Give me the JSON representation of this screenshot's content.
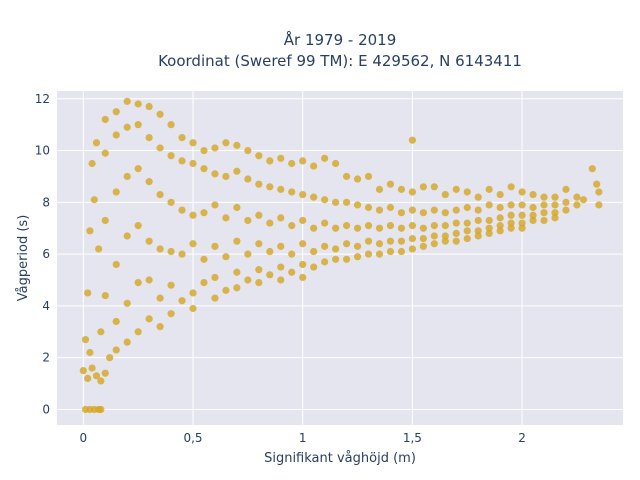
{
  "chart_data": {
    "type": "scatter",
    "title_line1": "År 1979 - 2019",
    "title_line2": "Koordinat (Sweref 99 TM): E 429562, N 6143411",
    "xlabel": "Signifikant våghöjd (m)",
    "ylabel": "Vågperiod (s)",
    "xlim": [
      -0.12,
      2.46
    ],
    "ylim": [
      -0.6,
      12.3
    ],
    "xticks": [
      0,
      0.5,
      1,
      1.5,
      2
    ],
    "xtick_labels": [
      "0",
      "0,5",
      "1",
      "1,5",
      "2"
    ],
    "yticks": [
      0,
      2,
      4,
      6,
      8,
      10,
      12
    ],
    "ytick_labels": [
      "0",
      "2",
      "4",
      "6",
      "8",
      "10",
      "12"
    ],
    "grid": true,
    "marker_color": "#D4A520",
    "plot_background": "#E5E5EF",
    "series": [
      {
        "points": [
          [
            0.01,
            0
          ],
          [
            0.03,
            0
          ],
          [
            0.05,
            0
          ],
          [
            0.07,
            0
          ],
          [
            0.08,
            0
          ],
          [
            0.0,
            1.5
          ],
          [
            0.02,
            1.2
          ],
          [
            0.04,
            1.6
          ],
          [
            0.06,
            1.3
          ],
          [
            0.08,
            1.1
          ],
          [
            0.1,
            1.4
          ],
          [
            0.03,
            2.2
          ],
          [
            0.01,
            2.7
          ],
          [
            0.02,
            4.5
          ],
          [
            0.03,
            6.9
          ],
          [
            0.04,
            9.5
          ],
          [
            0.06,
            10.3
          ],
          [
            0.05,
            8.1
          ],
          [
            0.07,
            6.2
          ],
          [
            0.08,
            3.0
          ],
          [
            0.1,
            11.2
          ],
          [
            0.1,
            9.9
          ],
          [
            0.1,
            7.3
          ],
          [
            0.1,
            4.4
          ],
          [
            0.12,
            2.0
          ],
          [
            0.15,
            11.5
          ],
          [
            0.15,
            10.6
          ],
          [
            0.15,
            8.4
          ],
          [
            0.15,
            5.6
          ],
          [
            0.15,
            3.4
          ],
          [
            0.15,
            2.3
          ],
          [
            0.2,
            11.9
          ],
          [
            0.2,
            10.9
          ],
          [
            0.2,
            9.0
          ],
          [
            0.2,
            6.7
          ],
          [
            0.2,
            4.1
          ],
          [
            0.2,
            2.6
          ],
          [
            0.25,
            11.8
          ],
          [
            0.25,
            11.0
          ],
          [
            0.25,
            9.3
          ],
          [
            0.25,
            7.1
          ],
          [
            0.25,
            4.9
          ],
          [
            0.25,
            3.0
          ],
          [
            0.3,
            11.7
          ],
          [
            0.3,
            10.5
          ],
          [
            0.3,
            8.8
          ],
          [
            0.3,
            6.5
          ],
          [
            0.3,
            5.0
          ],
          [
            0.3,
            3.5
          ],
          [
            0.35,
            11.4
          ],
          [
            0.35,
            10.1
          ],
          [
            0.35,
            8.3
          ],
          [
            0.35,
            6.2
          ],
          [
            0.35,
            4.3
          ],
          [
            0.35,
            3.2
          ],
          [
            0.4,
            11.0
          ],
          [
            0.4,
            9.8
          ],
          [
            0.4,
            8.0
          ],
          [
            0.4,
            6.1
          ],
          [
            0.4,
            4.8
          ],
          [
            0.4,
            3.7
          ],
          [
            0.45,
            10.5
          ],
          [
            0.45,
            9.6
          ],
          [
            0.45,
            7.7
          ],
          [
            0.45,
            6.0
          ],
          [
            0.45,
            4.2
          ],
          [
            0.5,
            10.3
          ],
          [
            0.5,
            9.5
          ],
          [
            0.5,
            7.5
          ],
          [
            0.5,
            6.4
          ],
          [
            0.5,
            4.5
          ],
          [
            0.5,
            3.9
          ],
          [
            0.55,
            10.0
          ],
          [
            0.55,
            9.3
          ],
          [
            0.55,
            7.6
          ],
          [
            0.55,
            5.8
          ],
          [
            0.55,
            4.9
          ],
          [
            0.6,
            10.1
          ],
          [
            0.6,
            9.1
          ],
          [
            0.6,
            7.9
          ],
          [
            0.6,
            6.3
          ],
          [
            0.6,
            5.1
          ],
          [
            0.6,
            4.3
          ],
          [
            0.65,
            10.3
          ],
          [
            0.65,
            9.0
          ],
          [
            0.65,
            7.4
          ],
          [
            0.65,
            5.9
          ],
          [
            0.65,
            4.6
          ],
          [
            0.7,
            10.2
          ],
          [
            0.7,
            9.2
          ],
          [
            0.7,
            7.8
          ],
          [
            0.7,
            6.5
          ],
          [
            0.7,
            5.3
          ],
          [
            0.7,
            4.7
          ],
          [
            0.75,
            10.0
          ],
          [
            0.75,
            8.9
          ],
          [
            0.75,
            7.3
          ],
          [
            0.75,
            6.0
          ],
          [
            0.75,
            5.0
          ],
          [
            0.8,
            9.8
          ],
          [
            0.8,
            8.7
          ],
          [
            0.8,
            7.5
          ],
          [
            0.8,
            6.4
          ],
          [
            0.8,
            5.4
          ],
          [
            0.8,
            4.9
          ],
          [
            0.85,
            9.6
          ],
          [
            0.85,
            8.6
          ],
          [
            0.85,
            7.2
          ],
          [
            0.85,
            6.1
          ],
          [
            0.85,
            5.2
          ],
          [
            0.9,
            9.7
          ],
          [
            0.9,
            8.5
          ],
          [
            0.9,
            7.4
          ],
          [
            0.9,
            6.3
          ],
          [
            0.9,
            5.5
          ],
          [
            0.9,
            5.0
          ],
          [
            0.95,
            9.5
          ],
          [
            0.95,
            8.4
          ],
          [
            0.95,
            7.1
          ],
          [
            0.95,
            6.0
          ],
          [
            0.95,
            5.3
          ],
          [
            1.0,
            9.6
          ],
          [
            1.0,
            8.3
          ],
          [
            1.0,
            7.3
          ],
          [
            1.0,
            6.4
          ],
          [
            1.0,
            5.6
          ],
          [
            1.0,
            5.1
          ],
          [
            1.05,
            9.4
          ],
          [
            1.05,
            8.2
          ],
          [
            1.05,
            7.0
          ],
          [
            1.05,
            6.1
          ],
          [
            1.05,
            5.5
          ],
          [
            1.1,
            9.7
          ],
          [
            1.1,
            8.1
          ],
          [
            1.1,
            7.2
          ],
          [
            1.1,
            6.3
          ],
          [
            1.1,
            5.7
          ],
          [
            1.15,
            9.5
          ],
          [
            1.15,
            8.0
          ],
          [
            1.15,
            7.0
          ],
          [
            1.15,
            6.2
          ],
          [
            1.15,
            5.8
          ],
          [
            1.2,
            9.0
          ],
          [
            1.2,
            8.0
          ],
          [
            1.2,
            7.1
          ],
          [
            1.2,
            6.4
          ],
          [
            1.2,
            5.8
          ],
          [
            1.25,
            8.9
          ],
          [
            1.25,
            7.9
          ],
          [
            1.25,
            7.0
          ],
          [
            1.25,
            6.3
          ],
          [
            1.25,
            5.9
          ],
          [
            1.3,
            9.0
          ],
          [
            1.3,
            7.8
          ],
          [
            1.3,
            7.1
          ],
          [
            1.3,
            6.5
          ],
          [
            1.3,
            6.0
          ],
          [
            1.35,
            8.5
          ],
          [
            1.35,
            7.7
          ],
          [
            1.35,
            7.0
          ],
          [
            1.35,
            6.4
          ],
          [
            1.35,
            6.0
          ],
          [
            1.4,
            8.7
          ],
          [
            1.4,
            7.8
          ],
          [
            1.4,
            7.1
          ],
          [
            1.4,
            6.5
          ],
          [
            1.4,
            6.1
          ],
          [
            1.45,
            8.5
          ],
          [
            1.45,
            7.6
          ],
          [
            1.45,
            7.0
          ],
          [
            1.45,
            6.5
          ],
          [
            1.45,
            6.1
          ],
          [
            1.5,
            10.4
          ],
          [
            1.5,
            8.4
          ],
          [
            1.5,
            7.7
          ],
          [
            1.5,
            7.1
          ],
          [
            1.5,
            6.6
          ],
          [
            1.5,
            6.2
          ],
          [
            1.55,
            8.6
          ],
          [
            1.55,
            7.6
          ],
          [
            1.55,
            7.0
          ],
          [
            1.55,
            6.6
          ],
          [
            1.55,
            6.3
          ],
          [
            1.6,
            8.6
          ],
          [
            1.6,
            7.7
          ],
          [
            1.6,
            7.1
          ],
          [
            1.6,
            6.7
          ],
          [
            1.6,
            6.4
          ],
          [
            1.65,
            8.3
          ],
          [
            1.65,
            7.6
          ],
          [
            1.65,
            7.1
          ],
          [
            1.65,
            6.7
          ],
          [
            1.65,
            6.5
          ],
          [
            1.7,
            8.5
          ],
          [
            1.7,
            7.7
          ],
          [
            1.7,
            7.2
          ],
          [
            1.7,
            6.8
          ],
          [
            1.7,
            6.5
          ],
          [
            1.75,
            8.4
          ],
          [
            1.75,
            7.8
          ],
          [
            1.75,
            7.2
          ],
          [
            1.75,
            6.9
          ],
          [
            1.75,
            6.6
          ],
          [
            1.8,
            8.2
          ],
          [
            1.8,
            7.7
          ],
          [
            1.8,
            7.3
          ],
          [
            1.8,
            6.9
          ],
          [
            1.8,
            6.7
          ],
          [
            1.85,
            8.5
          ],
          [
            1.85,
            7.9
          ],
          [
            1.85,
            7.3
          ],
          [
            1.85,
            7.0
          ],
          [
            1.85,
            6.8
          ],
          [
            1.9,
            8.3
          ],
          [
            1.9,
            7.8
          ],
          [
            1.9,
            7.4
          ],
          [
            1.9,
            7.1
          ],
          [
            1.9,
            6.9
          ],
          [
            1.95,
            8.6
          ],
          [
            1.95,
            7.9
          ],
          [
            1.95,
            7.5
          ],
          [
            1.95,
            7.2
          ],
          [
            1.95,
            7.0
          ],
          [
            2.0,
            8.4
          ],
          [
            2.0,
            7.9
          ],
          [
            2.0,
            7.5
          ],
          [
            2.0,
            7.2
          ],
          [
            2.0,
            7.0
          ],
          [
            2.05,
            8.3
          ],
          [
            2.05,
            7.8
          ],
          [
            2.05,
            7.5
          ],
          [
            2.05,
            7.3
          ],
          [
            2.1,
            8.2
          ],
          [
            2.1,
            7.9
          ],
          [
            2.1,
            7.6
          ],
          [
            2.1,
            7.3
          ],
          [
            2.15,
            8.2
          ],
          [
            2.15,
            7.9
          ],
          [
            2.15,
            7.6
          ],
          [
            2.15,
            7.4
          ],
          [
            2.2,
            8.5
          ],
          [
            2.2,
            8.0
          ],
          [
            2.2,
            7.7
          ],
          [
            2.25,
            8.2
          ],
          [
            2.25,
            7.9
          ],
          [
            2.28,
            8.1
          ],
          [
            2.32,
            9.3
          ],
          [
            2.34,
            8.7
          ],
          [
            2.35,
            8.4
          ],
          [
            2.35,
            7.9
          ]
        ]
      }
    ]
  }
}
